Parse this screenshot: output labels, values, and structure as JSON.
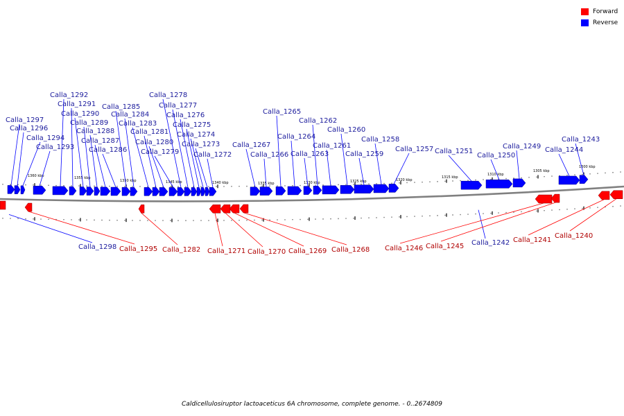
{
  "legend": {
    "forward": {
      "label": "Forward",
      "color": "#ff0000"
    },
    "reverse": {
      "label": "Reverse",
      "color": "#0000ff"
    }
  },
  "caption": "Caldicellulosiruptor lactoaceticus 6A chromosome, complete genome. - 0..2674809",
  "scale": {
    "ticks": [
      "1360 kbp",
      "1355 kbp",
      "1350 kbp",
      "1345 kbp",
      "1340 kbp",
      "1335 kbp",
      "1330 kbp",
      "1325 kbp",
      "1320 kbp",
      "1315 kbp",
      "1310 kbp",
      "1305 kbp",
      "1300 kbp"
    ]
  },
  "genes": {
    "reverse": [
      "Calla_1297",
      "Calla_1296",
      "Calla_1294",
      "Calla_1293",
      "Calla_1292",
      "Calla_1291",
      "Calla_1290",
      "Calla_1289",
      "Calla_1288",
      "Calla_1287",
      "Calla_1286",
      "Calla_1285",
      "Calla_1284",
      "Calla_1283",
      "Calla_1281",
      "Calla_1280",
      "Calla_1279",
      "Calla_1278",
      "Calla_1277",
      "Calla_1276",
      "Calla_1275",
      "Calla_1274",
      "Calla_1273",
      "Calla_1272",
      "Calla_1267",
      "Calla_1266",
      "Calla_1265",
      "Calla_1264",
      "Calla_1263",
      "Calla_1262",
      "Calla_1261",
      "Calla_1260",
      "Calla_1259",
      "Calla_1258",
      "Calla_1257",
      "Calla_1251",
      "Calla_1250",
      "Calla_1249",
      "Calla_1244",
      "Calla_1243",
      "Calla_1298",
      "Calla_1242"
    ],
    "forward": [
      "Calla_1295",
      "Calla_1282",
      "Calla_1271",
      "Calla_1270",
      "Calla_1269",
      "Calla_1268",
      "Calla_1246",
      "Calla_1245",
      "Calla_1241",
      "Calla_1240"
    ]
  }
}
